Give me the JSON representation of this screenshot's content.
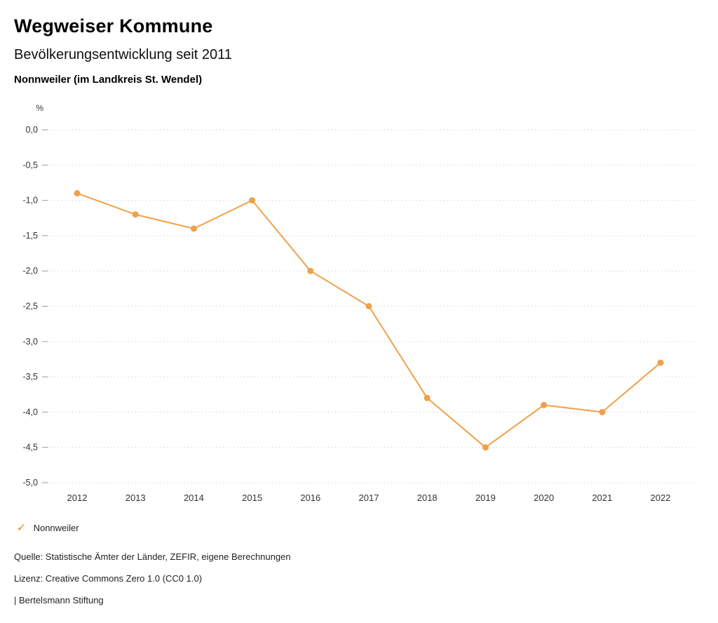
{
  "header": {
    "title": "Wegweiser Kommune",
    "subtitle": "Bevölkerungsentwicklung seit 2011",
    "location": "Nonnweiler (im Landkreis St. Wendel)"
  },
  "chart_data": {
    "type": "line",
    "title": "Bevölkerungsentwicklung seit 2011",
    "unit": "%",
    "xlabel": "",
    "ylabel": "%",
    "categories": [
      "2012",
      "2013",
      "2014",
      "2015",
      "2016",
      "2017",
      "2018",
      "2019",
      "2020",
      "2021",
      "2022"
    ],
    "series": [
      {
        "name": "Nonnweiler",
        "color": "#f0a04a",
        "values": [
          -0.9,
          -1.2,
          -1.4,
          -1.0,
          -2.0,
          -2.5,
          -3.8,
          -4.5,
          -3.9,
          -4.0,
          -3.3
        ]
      }
    ],
    "ylim": [
      -5.0,
      0.0
    ],
    "ytick_step": 0.5,
    "ytick_labels": [
      "0,0",
      "-0,5",
      "-1,0",
      "-1,5",
      "-2,0",
      "-2,5",
      "-3,0",
      "-3,5",
      "-4,0",
      "-4,5",
      "-5,0"
    ],
    "grid": true,
    "grid_style": "dotted",
    "legend_position": "bottom-left"
  },
  "legend": {
    "items": [
      {
        "label": "Nonnweiler",
        "color": "#f0a04a",
        "marker": "check"
      }
    ]
  },
  "footer": {
    "source": "Quelle: Statistische Ämter der Länder, ZEFIR, eigene Berechnungen",
    "license": "Lizenz: Creative Commons Zero 1.0 (CC0 1.0)",
    "attribution": "| Bertelsmann Stiftung"
  }
}
